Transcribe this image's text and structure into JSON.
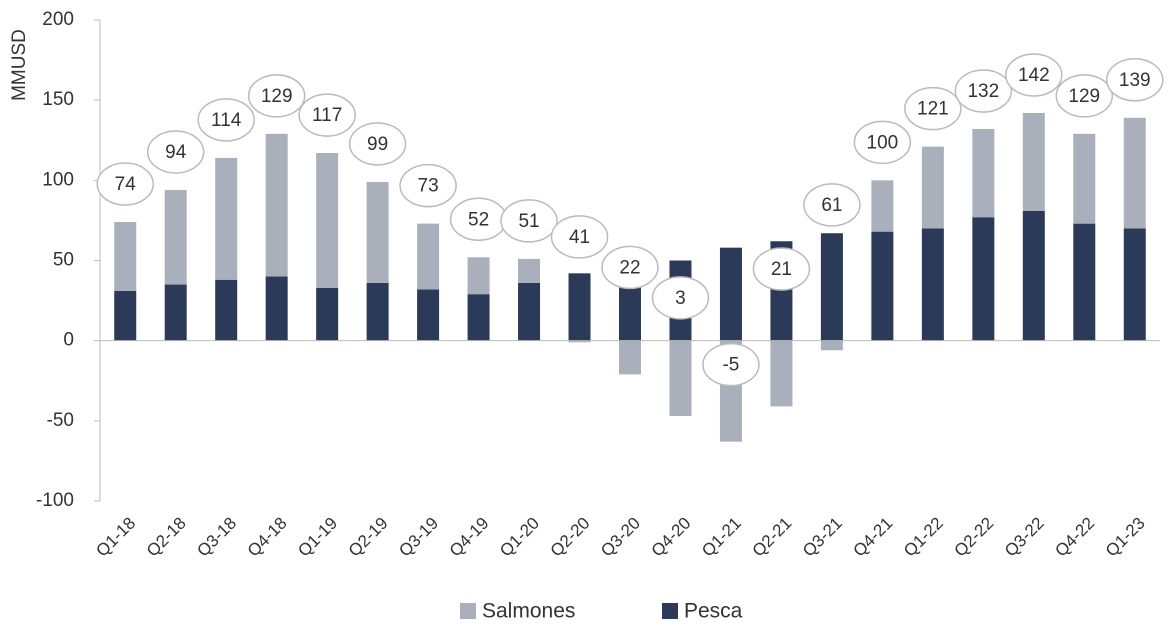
{
  "chart_data": {
    "type": "stacked_bar",
    "y_label": "MMUSD",
    "categories": [
      "Q1-18",
      "Q2-18",
      "Q3-18",
      "Q4-18",
      "Q1-19",
      "Q2-19",
      "Q3-19",
      "Q4-19",
      "Q1-20",
      "Q2-20",
      "Q3-20",
      "Q4-20",
      "Q1-21",
      "Q2-21",
      "Q3-21",
      "Q4-21",
      "Q1-22",
      "Q2-22",
      "Q3-22",
      "Q4-22",
      "Q1-23"
    ],
    "series": [
      {
        "name": "Pesca",
        "color": "#2c3a5a",
        "values": [
          31,
          35,
          38,
          40,
          33,
          36,
          32,
          29,
          36,
          42,
          43,
          50,
          58,
          62,
          67,
          68,
          70,
          77,
          81,
          73,
          70
        ]
      },
      {
        "name": "Salmones",
        "color": "#a9afbb",
        "values": [
          43,
          59,
          76,
          89,
          84,
          63,
          41,
          23,
          15,
          -1,
          -21,
          -47,
          -63,
          -41,
          -6,
          32,
          51,
          55,
          61,
          56,
          69
        ]
      }
    ],
    "totals": [
      74,
      94,
      114,
      129,
      117,
      99,
      73,
      52,
      51,
      41,
      22,
      3,
      -5,
      21,
      61,
      100,
      121,
      132,
      142,
      129,
      139
    ],
    "ylim": [
      -100,
      200
    ],
    "yticks": [
      -100,
      -50,
      0,
      50,
      100,
      150,
      200
    ],
    "legend": "bottom"
  }
}
